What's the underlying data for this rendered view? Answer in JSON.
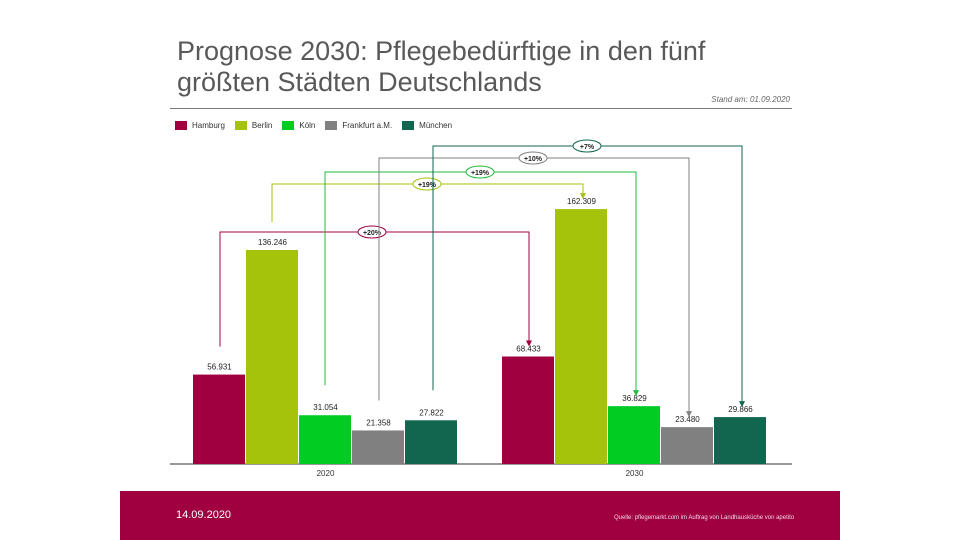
{
  "chart_data": {
    "type": "bar",
    "title": "Prognose 2030: Pflegebedürftige in den fünf größten Städten Deutschlands",
    "subtitle": "Stand am: 01.09.2020",
    "categories": [
      "2020",
      "2030"
    ],
    "legend_position": "top-left",
    "grid": false,
    "series": [
      {
        "name": "Hamburg",
        "color": "#a00040",
        "values": [
          56931,
          68433
        ],
        "labels": [
          "56.931",
          "68.433"
        ],
        "change": "+20%"
      },
      {
        "name": "Berlin",
        "color": "#a5c30b",
        "values": [
          136246,
          162309
        ],
        "labels": [
          "136.246",
          "162.309"
        ],
        "change": "+19%"
      },
      {
        "name": "Köln",
        "color": "#00cc22",
        "values": [
          31054,
          36829
        ],
        "labels": [
          "31.054",
          "36.829"
        ],
        "change": "+19%"
      },
      {
        "name": "Frankfurt a.M.",
        "color": "#808080",
        "values": [
          21358,
          23480
        ],
        "labels": [
          "21.358",
          "23.480"
        ],
        "change": "+10%"
      },
      {
        "name": "München",
        "color": "#116650",
        "values": [
          27822,
          29866
        ],
        "labels": [
          "27.822",
          "29.866"
        ],
        "change": "+7%"
      }
    ]
  },
  "footer": {
    "date": "14.09.2020",
    "source": "Quelle: pflegemarkt.com im Auftrag von Landhausküche von apetito",
    "color": "#a00040"
  }
}
